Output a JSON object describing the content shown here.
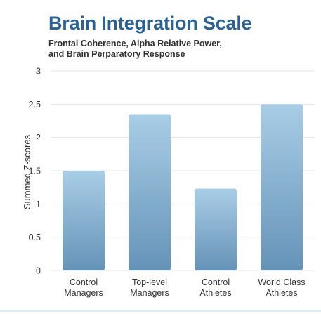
{
  "chart_data": {
    "type": "bar",
    "title": "Brain Integration Scale",
    "subtitle_lines": [
      "Frontal Coherence, Alpha Relative Power,",
      "and Brain Perparatory Response"
    ],
    "ylabel": "Summed Z-scores",
    "xlabel": "",
    "ylim": [
      0,
      3
    ],
    "yticks": [
      "0",
      "0.5",
      "1",
      "1.5",
      "2",
      "2.5",
      "3"
    ],
    "categories": [
      [
        "Control",
        "Managers"
      ],
      [
        "Top-level",
        "Managers"
      ],
      [
        "Control",
        "Athletes"
      ],
      [
        "World Class",
        "Athletes"
      ]
    ],
    "values": [
      1.5,
      2.35,
      1.23,
      2.5
    ],
    "grid": true,
    "colors": {
      "bar_top": "#a9cde6",
      "bar_bottom": "#6593b8",
      "title": "#2b6291",
      "grid": "#e3e3e3"
    }
  }
}
